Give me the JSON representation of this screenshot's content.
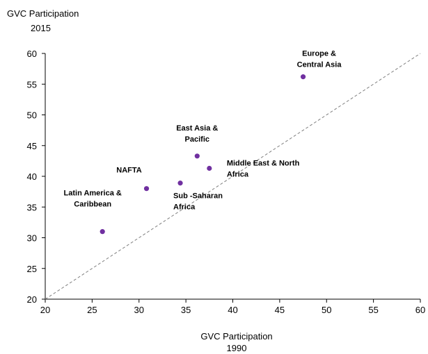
{
  "chart_data": {
    "type": "scatter",
    "ylabel": [
      "GVC Participation",
      "2015"
    ],
    "xlabel": [
      "GVC Participation",
      "1990"
    ],
    "xlim": [
      20,
      60
    ],
    "ylim": [
      20,
      60
    ],
    "xticks": [
      20,
      25,
      30,
      35,
      40,
      45,
      50,
      55,
      60
    ],
    "yticks": [
      20,
      25,
      30,
      35,
      40,
      45,
      50,
      55,
      60
    ],
    "grid": false,
    "reference_line": "45-degree dashed diagonal (y = x)",
    "point_color": "#7030a0",
    "points": [
      {
        "label": [
          "Europe &",
          "Central Asia"
        ],
        "x": 47.5,
        "y": 56.2
      },
      {
        "label": [
          "East Asia &",
          "Pacific"
        ],
        "x": 36.2,
        "y": 43.3
      },
      {
        "label": [
          "Middle East & North",
          "Africa"
        ],
        "x": 37.5,
        "y": 41.3
      },
      {
        "label": [
          "NAFTA"
        ],
        "x": 30.8,
        "y": 38.0
      },
      {
        "label": [
          "Sub -Saharan",
          "Africa"
        ],
        "x": 34.4,
        "y": 38.9
      },
      {
        "label": [
          "Latin America &",
          "Caribbean"
        ],
        "x": 26.1,
        "y": 31.0
      }
    ]
  }
}
